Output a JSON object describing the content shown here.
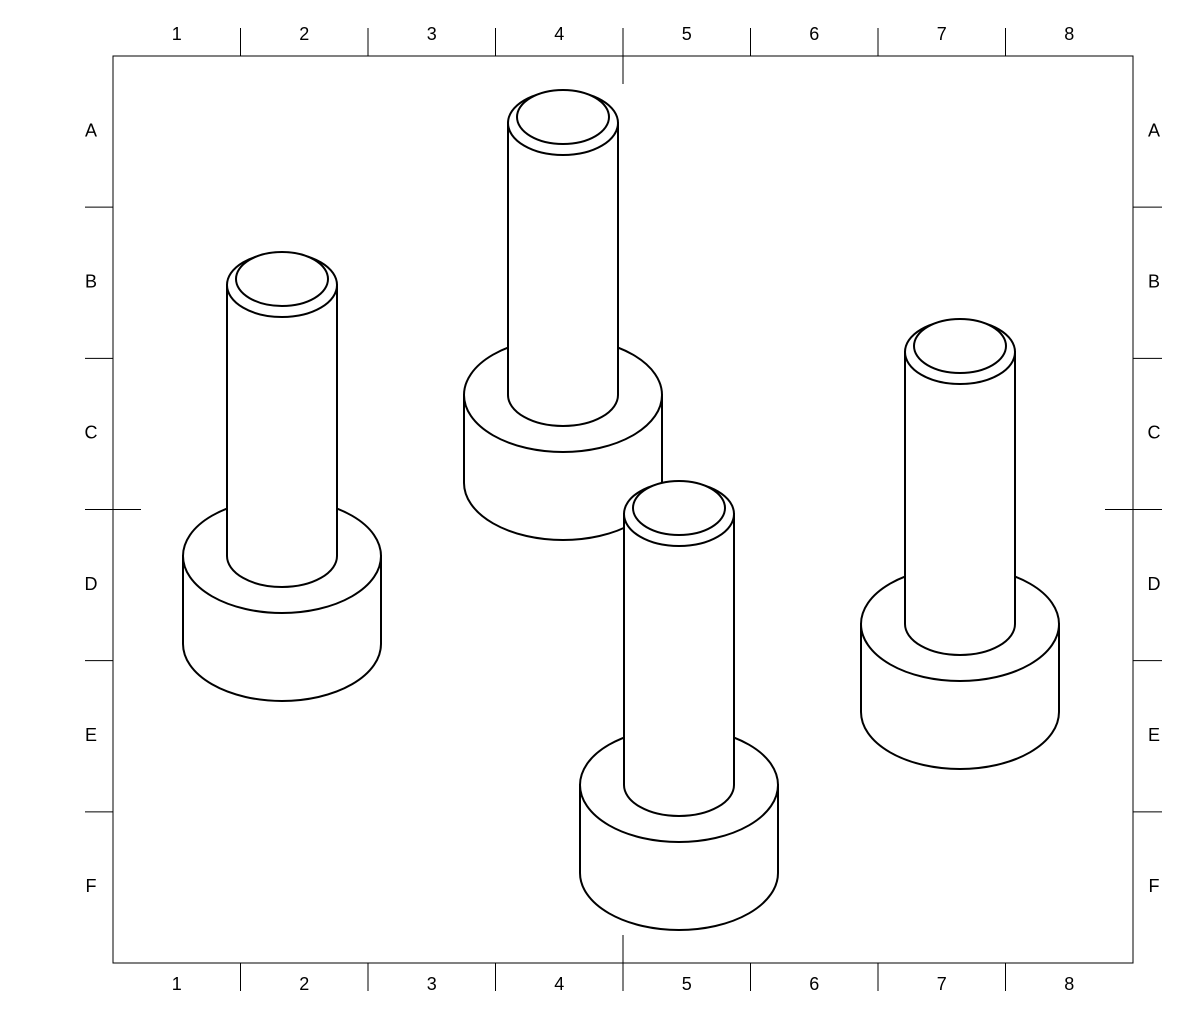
{
  "drawing": {
    "columns": [
      "1",
      "2",
      "3",
      "4",
      "5",
      "6",
      "7",
      "8"
    ],
    "rows": [
      "A",
      "B",
      "C",
      "D",
      "E",
      "F"
    ],
    "line_color": "#000000",
    "background": "#ffffff",
    "parts": [
      {
        "shape": "stepped-cylinder",
        "zone": "B-D 2"
      },
      {
        "shape": "stepped-cylinder",
        "zone": "A-C 4"
      },
      {
        "shape": "stepped-cylinder",
        "zone": "D-F 5"
      },
      {
        "shape": "stepped-cylinder",
        "zone": "C-E 7"
      }
    ]
  }
}
